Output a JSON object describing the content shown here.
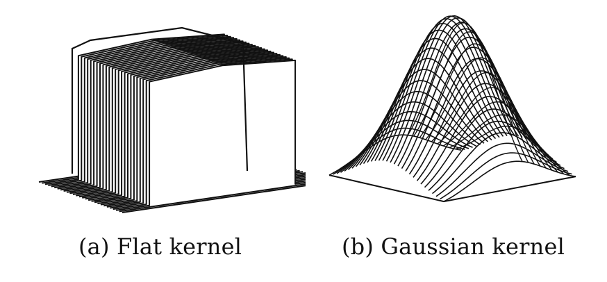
{
  "figure": {
    "panels": [
      {
        "id": "a",
        "caption": "(a) Flat kernel",
        "surface": "flat-box"
      },
      {
        "id": "b",
        "caption": "(b) Gaussian kernel",
        "surface": "gaussian-bump"
      }
    ],
    "colors": {
      "ink": "#111111",
      "background": "#ffffff"
    }
  }
}
